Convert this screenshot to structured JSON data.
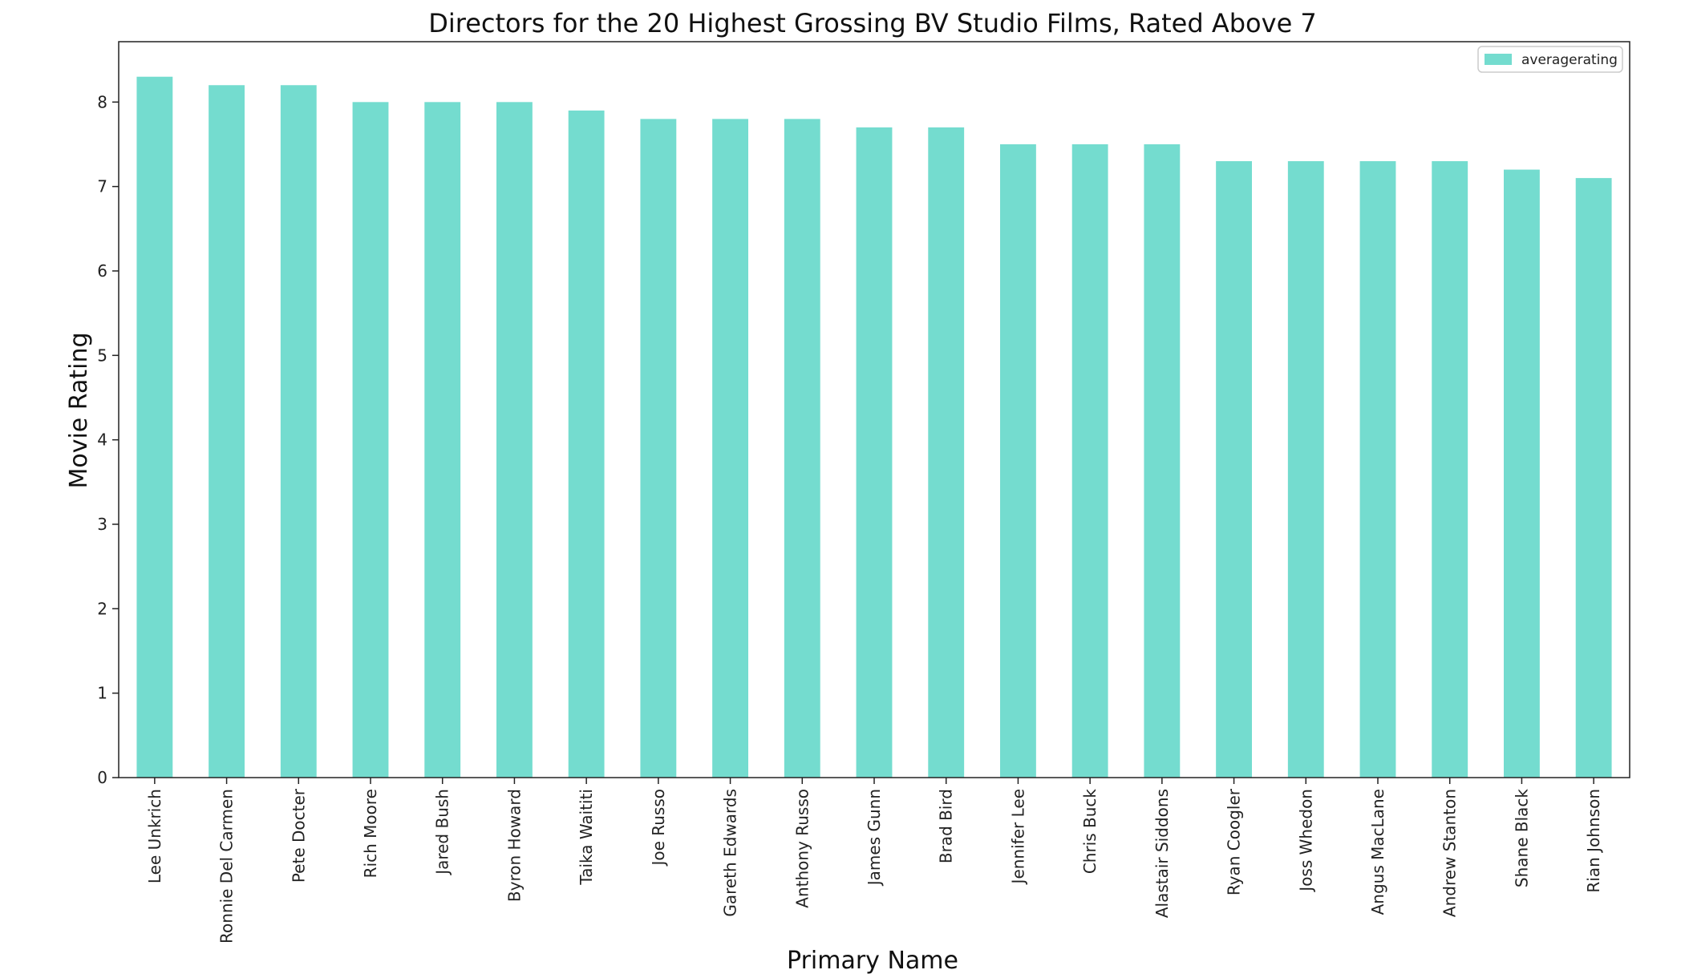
{
  "chart_data": {
    "type": "bar",
    "title": "Directors for the 20 Highest Grossing BV Studio Films, Rated Above 7",
    "xlabel": "Primary Name",
    "ylabel": "Movie Rating",
    "categories": [
      "Lee Unkrich",
      "Ronnie Del Carmen",
      "Pete Docter",
      "Rich Moore",
      "Jared Bush",
      "Byron Howard",
      "Taika Waititi",
      "Joe Russo",
      "Gareth Edwards",
      "Anthony Russo",
      "James Gunn",
      "Brad Bird",
      "Jennifer Lee",
      "Chris Buck",
      "Alastair Siddons",
      "Ryan Coogler",
      "Joss Whedon",
      "Angus MacLane",
      "Andrew Stanton",
      "Shane Black",
      "Rian Johnson"
    ],
    "series": [
      {
        "name": "averagerating",
        "color": "#74dccf",
        "values": [
          8.3,
          8.2,
          8.2,
          8.0,
          8.0,
          8.0,
          7.9,
          7.8,
          7.8,
          7.8,
          7.7,
          7.7,
          7.5,
          7.5,
          7.5,
          7.3,
          7.3,
          7.3,
          7.3,
          7.2,
          7.1
        ]
      }
    ],
    "ylim": [
      0,
      8.715
    ],
    "yticks": [
      0,
      1,
      2,
      3,
      4,
      5,
      6,
      7,
      8
    ],
    "grid": false,
    "legend_position": "top-right"
  }
}
